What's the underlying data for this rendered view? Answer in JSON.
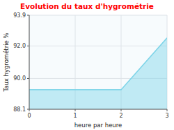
{
  "chart_data": {
    "type": "area",
    "title": "Evolution du taux d'hygrométrie",
    "x_label": "heure par heure",
    "y_label": "Taux hygrométrie %",
    "x": [
      0,
      2,
      3
    ],
    "values": [
      89.3,
      89.3,
      92.5
    ],
    "color": "#7dd4e8",
    "xlim": [
      0,
      3
    ],
    "ylim": [
      88.1,
      93.9
    ],
    "xticks": [
      0,
      1,
      2,
      3
    ],
    "yticks": [
      88.1,
      {
        "value": 90,
        "label": "90.0"
      },
      {
        "value": 92,
        "label": "92.0"
      },
      93.9
    ],
    "grid": true
  }
}
